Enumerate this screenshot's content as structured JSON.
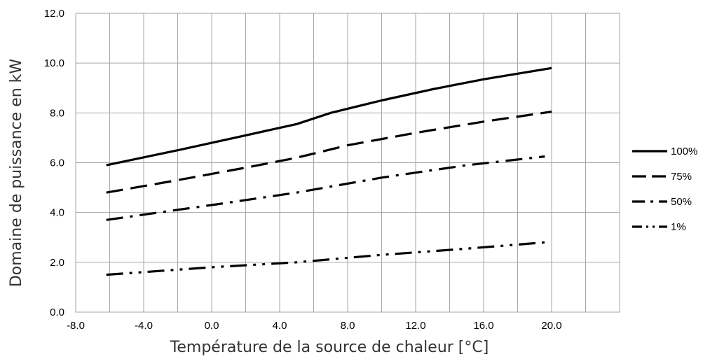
{
  "chart_data": {
    "type": "line",
    "xlabel": "Température de la source de chaleur [°C]",
    "ylabel": "Domaine de puissance en kW",
    "xlim": [
      -8.0,
      24.0
    ],
    "ylim": [
      0.0,
      12.0
    ],
    "x_ticks": [
      "-8.0",
      "-4.0",
      "0.0",
      "4.0",
      "8.0",
      "12.0",
      "16.0",
      "20.0"
    ],
    "y_ticks": [
      "0.0",
      "2.0",
      "4.0",
      "6.0",
      "8.0",
      "10.0",
      "12.0"
    ],
    "x_grid_step": 2.0,
    "y_grid_step": 2.0,
    "grid": true,
    "legend_position": "right",
    "series": [
      {
        "name": "100%",
        "dash": "solid",
        "points": [
          [
            -6.2,
            5.9
          ],
          [
            -2,
            6.5
          ],
          [
            2,
            7.1
          ],
          [
            5,
            7.55
          ],
          [
            7,
            8.0
          ],
          [
            10,
            8.5
          ],
          [
            13,
            8.95
          ],
          [
            16,
            9.35
          ],
          [
            20,
            9.8
          ]
        ]
      },
      {
        "name": "75%",
        "dash": "dash",
        "points": [
          [
            -6.2,
            4.8
          ],
          [
            -2,
            5.3
          ],
          [
            2,
            5.8
          ],
          [
            5,
            6.2
          ],
          [
            8,
            6.7
          ],
          [
            12,
            7.2
          ],
          [
            16,
            7.65
          ],
          [
            20,
            8.05
          ]
        ]
      },
      {
        "name": "50%",
        "dash": "dashdot",
        "points": [
          [
            -6.2,
            3.7
          ],
          [
            0,
            4.3
          ],
          [
            5,
            4.8
          ],
          [
            10,
            5.4
          ],
          [
            15,
            5.9
          ],
          [
            19.6,
            6.25
          ]
        ]
      },
      {
        "name": "1%",
        "dash": "dashdotdot",
        "points": [
          [
            -6.2,
            1.5
          ],
          [
            0,
            1.8
          ],
          [
            5,
            2.0
          ],
          [
            10,
            2.3
          ],
          [
            15,
            2.55
          ],
          [
            19.6,
            2.8
          ]
        ]
      }
    ]
  }
}
